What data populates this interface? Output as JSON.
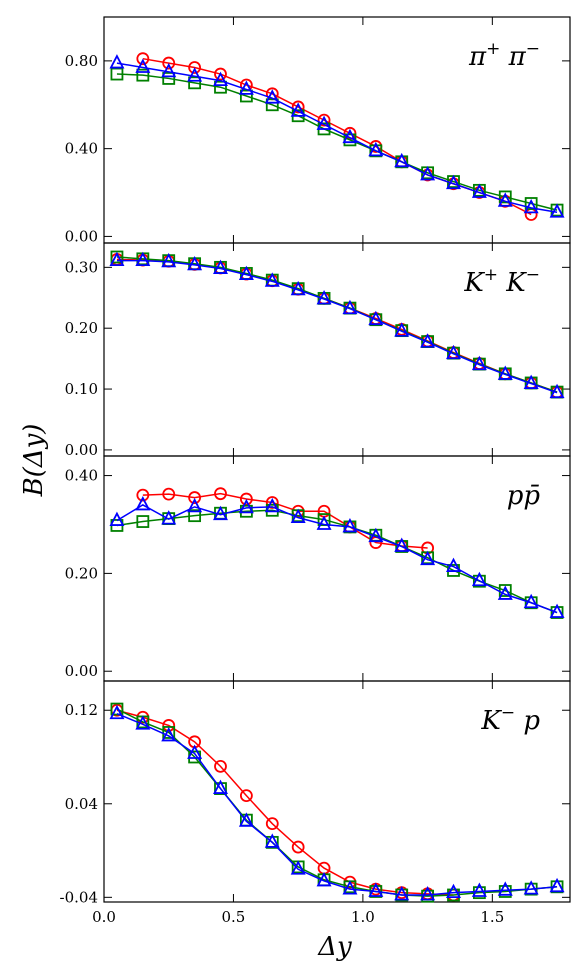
{
  "chart_data": {
    "type": "line",
    "xlabel": "Δy",
    "ylabel": "B(Δy)",
    "xlim": [
      0.0,
      1.8
    ],
    "x_ticks": [
      "0.0",
      "0.5",
      "1.0",
      "1.5"
    ],
    "x_tick_values": [
      0.0,
      0.5,
      1.0,
      1.5
    ],
    "colors": {
      "red": "#ff0000",
      "green": "#008000",
      "blue": "#0000ff"
    },
    "markers": {
      "red": "circle",
      "green": "square",
      "blue": "triangle"
    },
    "panels": [
      {
        "label": "π⁺ π⁻",
        "label_parts": [
          {
            "t": "π",
            "sup": false
          },
          {
            "t": "+",
            "sup": true
          },
          {
            "t": " π",
            "sup": false
          },
          {
            "t": "−",
            "sup": true
          }
        ],
        "ylim": [
          -0.03,
          1.0
        ],
        "y_ticks": [
          "0.00",
          "0.40",
          "0.80"
        ],
        "y_tick_values": [
          0.0,
          0.4,
          0.8
        ],
        "series": [
          {
            "color": "red",
            "x": [
              0.15,
              0.25,
              0.35,
              0.45,
              0.55,
              0.65,
              0.75,
              0.85,
              0.95,
              1.05,
              1.15,
              1.25,
              1.35,
              1.45,
              1.55,
              1.65
            ],
            "values": [
              0.81,
              0.79,
              0.77,
              0.74,
              0.69,
              0.65,
              0.59,
              0.53,
              0.47,
              0.41,
              0.34,
              0.28,
              0.24,
              0.2,
              0.16,
              0.1
            ]
          },
          {
            "color": "green",
            "x": [
              0.05,
              0.15,
              0.25,
              0.35,
              0.45,
              0.55,
              0.65,
              0.75,
              0.85,
              0.95,
              1.05,
              1.15,
              1.25,
              1.35,
              1.45,
              1.55,
              1.65,
              1.75
            ],
            "values": [
              0.74,
              0.735,
              0.72,
              0.7,
              0.68,
              0.64,
              0.6,
              0.55,
              0.49,
              0.44,
              0.39,
              0.34,
              0.29,
              0.25,
              0.21,
              0.18,
              0.15,
              0.12
            ]
          },
          {
            "color": "blue",
            "x": [
              0.05,
              0.15,
              0.25,
              0.35,
              0.45,
              0.55,
              0.65,
              0.75,
              0.85,
              0.95,
              1.05,
              1.15,
              1.25,
              1.35,
              1.45,
              1.55,
              1.65,
              1.75
            ],
            "values": [
              0.79,
              0.77,
              0.75,
              0.73,
              0.71,
              0.67,
              0.63,
              0.57,
              0.51,
              0.45,
              0.39,
              0.34,
              0.28,
              0.24,
              0.2,
              0.16,
              0.13,
              0.11
            ]
          }
        ]
      },
      {
        "label": "K⁺ K⁻",
        "label_parts": [
          {
            "t": "K",
            "sup": false
          },
          {
            "t": "+",
            "sup": true
          },
          {
            "t": " K",
            "sup": false
          },
          {
            "t": "−",
            "sup": true
          }
        ],
        "ylim": [
          -0.01,
          0.34
        ],
        "y_ticks": [
          "0.00",
          "0.10",
          "0.20",
          "0.30"
        ],
        "y_tick_values": [
          0.0,
          0.1,
          0.2,
          0.3
        ],
        "series": [
          {
            "color": "red",
            "x": [
              0.05,
              0.15,
              0.25,
              0.35,
              0.45,
              0.55,
              0.65,
              0.75,
              0.85,
              0.95,
              1.05,
              1.15,
              1.25,
              1.35,
              1.45,
              1.55,
              1.65,
              1.75
            ],
            "values": [
              0.313,
              0.312,
              0.31,
              0.305,
              0.299,
              0.289,
              0.278,
              0.264,
              0.249,
              0.233,
              0.216,
              0.198,
              0.179,
              0.16,
              0.142,
              0.125,
              0.11,
              0.095
            ]
          },
          {
            "color": "green",
            "x": [
              0.05,
              0.15,
              0.25,
              0.35,
              0.45,
              0.55,
              0.65,
              0.75,
              0.85,
              0.95,
              1.05,
              1.15,
              1.25,
              1.35,
              1.45,
              1.55,
              1.65,
              1.75
            ],
            "values": [
              0.317,
              0.314,
              0.311,
              0.306,
              0.3,
              0.29,
              0.279,
              0.265,
              0.249,
              0.233,
              0.214,
              0.196,
              0.178,
              0.159,
              0.141,
              0.125,
              0.11,
              0.095
            ]
          },
          {
            "color": "blue",
            "x": [
              0.05,
              0.15,
              0.25,
              0.35,
              0.45,
              0.55,
              0.65,
              0.75,
              0.85,
              0.95,
              1.05,
              1.15,
              1.25,
              1.35,
              1.45,
              1.55,
              1.65,
              1.75
            ],
            "values": [
              0.311,
              0.311,
              0.309,
              0.304,
              0.298,
              0.288,
              0.277,
              0.263,
              0.248,
              0.232,
              0.214,
              0.195,
              0.177,
              0.158,
              0.14,
              0.124,
              0.109,
              0.094
            ]
          }
        ]
      },
      {
        "label": "pp̄",
        "label_parts": [
          {
            "t": "pp̄",
            "sup": false
          }
        ],
        "ylim": [
          -0.02,
          0.44
        ],
        "y_ticks": [
          "0.00",
          "0.20",
          "0.40"
        ],
        "y_tick_values": [
          0.0,
          0.2,
          0.4
        ],
        "series": [
          {
            "color": "red",
            "x": [
              0.15,
              0.25,
              0.35,
              0.45,
              0.55,
              0.65,
              0.75,
              0.85,
              0.95,
              1.05,
              1.15,
              1.25
            ],
            "values": [
              0.36,
              0.362,
              0.355,
              0.363,
              0.352,
              0.345,
              0.327,
              0.327,
              0.295,
              0.263,
              0.256,
              0.252
            ]
          },
          {
            "color": "green",
            "x": [
              0.05,
              0.15,
              0.25,
              0.35,
              0.45,
              0.55,
              0.65,
              0.75,
              0.85,
              0.95,
              1.05,
              1.15,
              1.25,
              1.35,
              1.45,
              1.55,
              1.65,
              1.75
            ],
            "values": [
              0.298,
              0.306,
              0.312,
              0.318,
              0.323,
              0.327,
              0.329,
              0.318,
              0.31,
              0.295,
              0.278,
              0.255,
              0.232,
              0.206,
              0.184,
              0.165,
              0.14,
              0.12
            ]
          },
          {
            "color": "blue",
            "x": [
              0.05,
              0.15,
              0.25,
              0.35,
              0.45,
              0.55,
              0.65,
              0.75,
              0.85,
              0.95,
              1.05,
              1.15,
              1.25,
              1.35,
              1.45,
              1.55,
              1.65,
              1.75
            ],
            "values": [
              0.308,
              0.34,
              0.311,
              0.336,
              0.32,
              0.334,
              0.336,
              0.314,
              0.3,
              0.295,
              0.275,
              0.255,
              0.228,
              0.214,
              0.185,
              0.157,
              0.14,
              0.12
            ]
          }
        ]
      },
      {
        "label": "K⁻ p",
        "label_parts": [
          {
            "t": "K",
            "sup": false
          },
          {
            "t": "−",
            "sup": true
          },
          {
            "t": " p",
            "sup": false
          }
        ],
        "ylim": [
          -0.044,
          0.145
        ],
        "y_ticks": [
          "-0.04",
          "0.04",
          "0.12"
        ],
        "y_tick_values": [
          -0.04,
          0.04,
          0.12
        ],
        "series": [
          {
            "color": "red",
            "x": [
              0.05,
              0.15,
              0.25,
              0.35,
              0.45,
              0.55,
              0.65,
              0.75,
              0.85,
              0.95,
              1.05,
              1.15,
              1.25,
              1.35
            ],
            "values": [
              0.12,
              0.114,
              0.107,
              0.093,
              0.072,
              0.047,
              0.023,
              0.003,
              -0.015,
              -0.027,
              -0.033,
              -0.036,
              -0.037,
              -0.038
            ]
          },
          {
            "color": "green",
            "x": [
              0.05,
              0.15,
              0.25,
              0.35,
              0.45,
              0.55,
              0.65,
              0.75,
              0.85,
              0.95,
              1.05,
              1.15,
              1.25,
              1.35,
              1.45,
              1.55,
              1.65,
              1.75
            ],
            "values": [
              0.121,
              0.11,
              0.101,
              0.08,
              0.053,
              0.026,
              0.007,
              -0.014,
              -0.025,
              -0.031,
              -0.035,
              -0.038,
              -0.039,
              -0.038,
              -0.036,
              -0.035,
              -0.033,
              -0.031
            ]
          },
          {
            "color": "blue",
            "x": [
              0.05,
              0.15,
              0.25,
              0.35,
              0.45,
              0.55,
              0.65,
              0.75,
              0.85,
              0.95,
              1.05,
              1.15,
              1.25,
              1.35,
              1.45,
              1.55,
              1.65,
              1.75
            ],
            "values": [
              0.117,
              0.108,
              0.098,
              0.083,
              0.053,
              0.025,
              0.007,
              -0.016,
              -0.026,
              -0.033,
              -0.035,
              -0.038,
              -0.038,
              -0.036,
              -0.035,
              -0.034,
              -0.033,
              -0.031
            ]
          }
        ]
      }
    ]
  }
}
